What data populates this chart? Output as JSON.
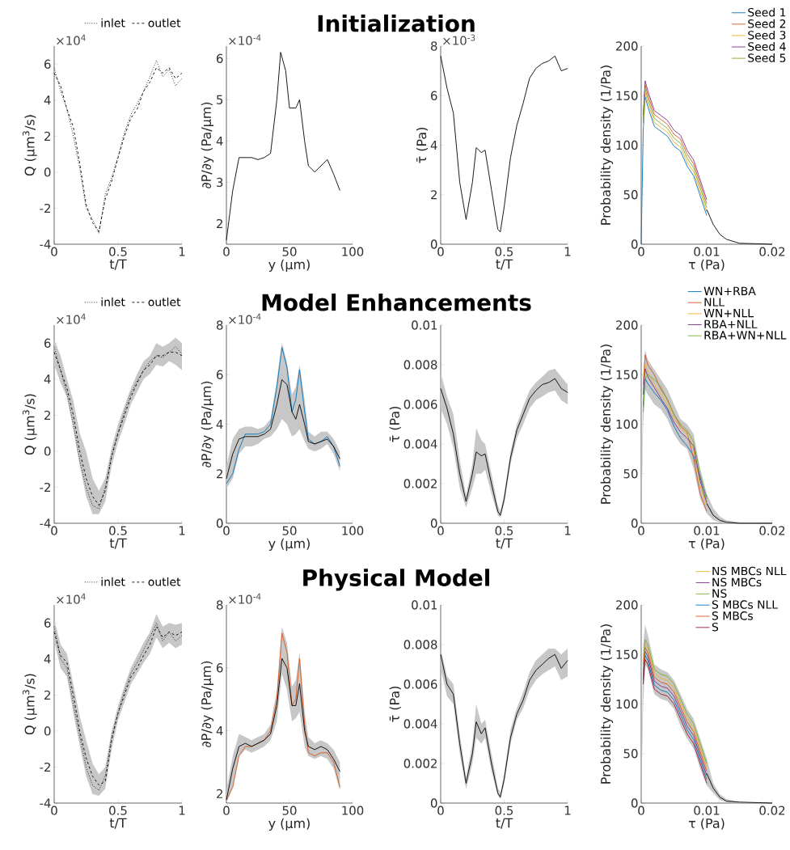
{
  "chart_data": [
    {
      "type": "line",
      "xlabel": "t/T",
      "ylabel": "Q (μm$^{3}$/s)",
      "annotations": [
        "×10$^{4}$"
      ],
      "legend": "top",
      "xlim": [
        0,
        1
      ],
      "ylim": [
        -4,
        7
      ],
      "xticks": [
        0,
        0.5,
        1
      ],
      "yticks": [
        -4,
        -2,
        0,
        2,
        4,
        6
      ],
      "x": [
        0,
        0.05,
        0.1,
        0.15,
        0.2,
        0.25,
        0.3,
        0.35,
        0.4,
        0.45,
        0.5,
        0.55,
        0.6,
        0.65,
        0.7,
        0.75,
        0.8,
        0.85,
        0.9,
        0.95,
        1
      ],
      "series": [
        {
          "name": "inlet",
          "color": "#000000",
          "line_style": "dotted",
          "values": [
            5.8,
            4.5,
            3.5,
            2.0,
            0.2,
            -2.0,
            -2.6,
            -3.4,
            -1.2,
            -0.3,
            0.9,
            2.2,
            3.2,
            3.8,
            4.5,
            5.3,
            6.2,
            5.3,
            5.7,
            4.8,
            5.2
          ]
        },
        {
          "name": "outlet",
          "color": "#000000",
          "line_style": "dashed",
          "values": [
            5.5,
            4.8,
            3.5,
            2.5,
            0.5,
            -1.8,
            -2.8,
            -3.3,
            -1.5,
            -0.5,
            0.8,
            2.0,
            3.0,
            3.5,
            4.5,
            5.0,
            5.8,
            5.5,
            5.8,
            5.2,
            5.5
          ]
        }
      ]
    },
    {
      "type": "line",
      "title": "Initialization",
      "xlabel": "y  (μm)",
      "ylabel": "∂P/∂y (Pa/μm)",
      "annotations": [
        "×10$^{-4}$"
      ],
      "xlim": [
        0,
        100
      ],
      "ylim": [
        1.5,
        6.3
      ],
      "xticks": [
        0,
        50,
        100
      ],
      "yticks": [
        2,
        3,
        4,
        5,
        6
      ],
      "x": [
        0,
        5,
        10,
        15,
        20,
        25,
        30,
        35,
        40,
        43,
        47,
        50,
        55,
        58,
        62,
        65,
        70,
        75,
        80,
        85,
        90
      ],
      "series": [
        {
          "color": "#000000",
          "values": [
            1.6,
            2.8,
            3.6,
            3.6,
            3.6,
            3.55,
            3.6,
            3.7,
            5.0,
            6.15,
            5.7,
            4.8,
            4.8,
            5.0,
            4.0,
            3.4,
            3.25,
            3.4,
            3.55,
            3.2,
            2.8
          ]
        }
      ]
    },
    {
      "type": "line",
      "xlabel": "t/T",
      "ylabel": "τ̄ (Pa)",
      "annotations": [
        "×10$^{-3}$"
      ],
      "xlim": [
        0,
        1
      ],
      "ylim": [
        0,
        8
      ],
      "xticks": [
        0,
        0.5,
        1
      ],
      "yticks": [
        0,
        2,
        4,
        6,
        8
      ],
      "x": [
        0,
        0.05,
        0.1,
        0.15,
        0.2,
        0.25,
        0.28,
        0.32,
        0.35,
        0.4,
        0.45,
        0.47,
        0.5,
        0.55,
        0.6,
        0.65,
        0.7,
        0.75,
        0.8,
        0.85,
        0.9,
        0.95,
        1
      ],
      "series": [
        {
          "color": "#000000",
          "values": [
            7.6,
            6.3,
            5.3,
            2.5,
            1.0,
            2.5,
            3.9,
            3.7,
            3.8,
            2.2,
            0.6,
            0.5,
            1.5,
            3.5,
            4.8,
            5.7,
            6.7,
            7.1,
            7.3,
            7.4,
            7.6,
            7.0,
            7.1
          ]
        }
      ]
    },
    {
      "type": "line",
      "xlabel": "τ (Pa)",
      "ylabel": "Probability density (1/Pa)",
      "legend": "top right",
      "xlim": [
        0,
        0.02
      ],
      "ylim": [
        0,
        200
      ],
      "xticks": [
        0,
        0.01,
        0.02
      ],
      "yticks": [
        0,
        50,
        100,
        150,
        200
      ],
      "x": [
        0,
        0.0003,
        0.0006,
        0.001,
        0.002,
        0.003,
        0.004,
        0.005,
        0.006,
        0.007,
        0.008,
        0.009,
        0.01,
        0.011,
        0.012,
        0.013,
        0.015,
        0.02
      ],
      "series": [
        {
          "name": "Seed 1",
          "color": "#0072bd",
          "values": [
            0,
            114,
            149,
            139,
            119,
            114,
            109,
            99,
            94,
            79,
            69,
            49,
            29,
            null,
            null,
            null,
            null,
            null
          ]
        },
        {
          "name": "Seed 2",
          "color": "#d95319",
          "values": [
            null,
            126,
            161,
            151,
            131,
            126,
            121,
            111,
            106,
            91,
            81,
            61,
            41,
            null,
            null,
            null,
            null,
            null
          ]
        },
        {
          "name": "Seed 3",
          "color": "#edb120",
          "values": [
            null,
            118,
            153,
            143,
            123,
            118,
            113,
            103,
            98,
            83,
            73,
            53,
            33,
            null,
            null,
            null,
            null,
            null
          ]
        },
        {
          "name": "Seed 4",
          "color": "#7e2f8e",
          "values": [
            null,
            130,
            165,
            155,
            135,
            130,
            125,
            115,
            110,
            95,
            85,
            65,
            45,
            null,
            null,
            null,
            null,
            null
          ]
        },
        {
          "name": "Seed 5",
          "color": "#77ac30",
          "values": [
            null,
            122,
            157,
            147,
            127,
            122,
            117,
            107,
            102,
            87,
            77,
            57,
            37,
            null,
            null,
            null,
            null,
            null
          ]
        },
        {
          "color": "#000000",
          "values": [
            null,
            null,
            null,
            null,
            null,
            null,
            null,
            null,
            null,
            null,
            null,
            null,
            35,
            20,
            10,
            5,
            1,
            0
          ]
        }
      ]
    },
    {
      "type": "line",
      "xlabel": "t/T",
      "ylabel": "Q (μm$^{3}$/s)",
      "annotations": [
        "×10$^{4}$"
      ],
      "legend": "top",
      "xlim": [
        0,
        1
      ],
      "ylim": [
        -4,
        7
      ],
      "xticks": [
        0,
        0.5,
        1
      ],
      "yticks": [
        -4,
        -2,
        0,
        2,
        4,
        6
      ],
      "x": [
        0,
        0.05,
        0.1,
        0.15,
        0.2,
        0.25,
        0.3,
        0.35,
        0.4,
        0.45,
        0.5,
        0.55,
        0.6,
        0.65,
        0.7,
        0.75,
        0.8,
        0.85,
        0.9,
        0.95,
        1
      ],
      "series": [
        {
          "name": "inlet",
          "color": "#000000",
          "line_style": "dotted",
          "values": [
            5.8,
            4.5,
            3.2,
            1.5,
            -0.5,
            -2.0,
            -3.0,
            -3.2,
            -2.0,
            -0.2,
            1.0,
            2.2,
            3.2,
            3.9,
            4.5,
            5.0,
            5.3,
            5.2,
            5.5,
            5.8,
            5.4
          ]
        },
        {
          "name": "outlet",
          "color": "#000000",
          "line_style": "dashed",
          "values": [
            5.5,
            4.5,
            3.5,
            2.0,
            0,
            -1.5,
            -2.5,
            -3.0,
            -2.2,
            -0.3,
            1.0,
            2.0,
            3.0,
            3.8,
            4.5,
            4.8,
            5.3,
            5.3,
            5.5,
            5.5,
            5.3
          ],
          "lower": [
            4.8,
            3.8,
            3.0,
            1.2,
            -0.8,
            -2.5,
            -3.5,
            -3.5,
            -2.8,
            -0.8,
            0.5,
            1.5,
            2.6,
            3.3,
            4.0,
            4.3,
            4.8,
            4.7,
            5.0,
            4.8,
            4.5
          ],
          "upper": [
            6.2,
            5.3,
            4.0,
            2.8,
            1.0,
            0.0,
            -1.5,
            -2.2,
            -1.5,
            0.2,
            1.5,
            2.5,
            3.5,
            4.3,
            5.0,
            5.3,
            6.0,
            5.8,
            6.0,
            6.3,
            6.0
          ]
        }
      ]
    },
    {
      "type": "line",
      "title": "Model Enhancements",
      "xlabel": "y  (μm)",
      "ylabel": "∂P/∂y (Pa/μm)",
      "annotations": [
        "×10$^{-4}$"
      ],
      "xlim": [
        0,
        100
      ],
      "ylim": [
        0,
        8
      ],
      "xticks": [
        0,
        50,
        100
      ],
      "yticks": [
        0,
        2,
        4,
        6,
        8
      ],
      "x": [
        0,
        5,
        10,
        15,
        20,
        25,
        30,
        35,
        40,
        44,
        48,
        52,
        55,
        58,
        62,
        65,
        70,
        75,
        80,
        85,
        90
      ],
      "series": [
        {
          "color": "#0072bd",
          "values": [
            1.6,
            2.0,
            3.0,
            3.6,
            3.6,
            3.6,
            3.7,
            4.0,
            5.5,
            7.1,
            6.3,
            4.5,
            5.0,
            6.2,
            4.5,
            3.4,
            3.2,
            3.3,
            3.5,
            3.1,
            2.3
          ]
        },
        {
          "color": "#000000",
          "values": [
            1.8,
            2.8,
            3.4,
            3.5,
            3.5,
            3.5,
            3.6,
            3.8,
            4.8,
            5.8,
            5.6,
            4.5,
            4.2,
            4.8,
            4.0,
            3.3,
            3.2,
            3.3,
            3.4,
            3.1,
            2.6
          ],
          "lower": [
            1.4,
            1.8,
            2.8,
            3.1,
            3.1,
            3.2,
            3.4,
            3.5,
            3.8,
            4.2,
            4.0,
            3.5,
            3.6,
            3.8,
            3.3,
            3.0,
            2.9,
            3.0,
            3.2,
            2.8,
            2.1
          ],
          "upper": [
            2.3,
            3.4,
            3.8,
            3.9,
            3.9,
            3.8,
            3.9,
            4.2,
            5.8,
            7.3,
            6.5,
            5.2,
            5.5,
            6.4,
            5.0,
            3.7,
            3.5,
            3.7,
            3.7,
            3.4,
            2.9
          ]
        }
      ]
    },
    {
      "type": "line",
      "xlabel": "t/T",
      "ylabel": "τ̄ (Pa)",
      "xlim": [
        0,
        1
      ],
      "ylim": [
        0,
        0.01
      ],
      "xticks": [
        0,
        0.5,
        1
      ],
      "yticks": [
        0,
        0.002,
        0.004,
        0.006,
        0.008,
        0.01
      ],
      "x": [
        0,
        0.05,
        0.1,
        0.15,
        0.2,
        0.25,
        0.28,
        0.32,
        0.35,
        0.4,
        0.45,
        0.47,
        0.5,
        0.55,
        0.6,
        0.65,
        0.7,
        0.75,
        0.8,
        0.85,
        0.9,
        0.95,
        1
      ],
      "series": [
        {
          "color": "#000000",
          "values": [
            0.0068,
            0.0058,
            0.0045,
            0.0025,
            0.0011,
            0.0025,
            0.0036,
            0.0034,
            0.0035,
            0.002,
            0.0006,
            0.0004,
            0.0012,
            0.0033,
            0.0047,
            0.0055,
            0.0063,
            0.0067,
            0.007,
            0.0071,
            0.0073,
            0.0068,
            0.0066
          ],
          "lower": [
            0.0058,
            0.005,
            0.0038,
            0.0018,
            0.0008,
            0.0018,
            0.0025,
            0.0025,
            0.0027,
            0.0015,
            0.0004,
            0.0003,
            0.001,
            0.003,
            0.0043,
            0.005,
            0.0058,
            0.0062,
            0.0064,
            0.0066,
            0.0067,
            0.0062,
            0.006
          ],
          "upper": [
            0.0076,
            0.0064,
            0.0055,
            0.0032,
            0.0014,
            0.003,
            0.0048,
            0.0042,
            0.004,
            0.0025,
            0.0009,
            0.0006,
            0.0015,
            0.0036,
            0.005,
            0.0059,
            0.0067,
            0.0071,
            0.0074,
            0.0077,
            0.0078,
            0.0074,
            0.007
          ]
        }
      ]
    },
    {
      "type": "line",
      "xlabel": "τ (Pa)",
      "ylabel": "Probability density (1/Pa)",
      "legend": "top right",
      "xlim": [
        0,
        0.02
      ],
      "ylim": [
        0,
        200
      ],
      "xticks": [
        0,
        0.01,
        0.02
      ],
      "yticks": [
        0,
        50,
        100,
        150,
        200
      ],
      "x": [
        0,
        0.0003,
        0.0006,
        0.001,
        0.002,
        0.003,
        0.004,
        0.005,
        0.006,
        0.007,
        0.008,
        0.009,
        0.01,
        0.011,
        0.012,
        0.013,
        0.015,
        0.02
      ],
      "series": [
        {
          "name": "WN+RBA",
          "color": "#0072bd",
          "values": [
            null,
            118,
            146,
            141,
            132,
            124,
            114,
            98,
            86,
            78,
            68,
            46,
            26,
            null,
            null,
            null,
            null,
            null
          ]
        },
        {
          "name": "NLL",
          "color": "#d95319",
          "values": [
            null,
            140,
            170,
            160,
            150,
            135,
            125,
            110,
            98,
            92,
            65,
            30,
            12,
            null,
            null,
            null,
            null,
            null
          ]
        },
        {
          "name": "WN+NLL",
          "color": "#edb120",
          "values": [
            null,
            135,
            160,
            152,
            140,
            130,
            120,
            106,
            96,
            90,
            75,
            38,
            18,
            null,
            null,
            null,
            null,
            null
          ]
        },
        {
          "name": "RBA+NLL",
          "color": "#7e2f8e",
          "values": [
            null,
            130,
            156,
            148,
            137,
            126,
            116,
            102,
            92,
            86,
            78,
            43,
            21,
            null,
            null,
            null,
            null,
            null
          ]
        },
        {
          "name": "RBA+WN+NLL",
          "color": "#77ac30",
          "values": [
            null,
            112,
            146,
            150,
            145,
            138,
            124,
            110,
            100,
            94,
            82,
            50,
            24,
            null,
            null,
            null,
            null,
            null
          ]
        },
        {
          "color": "#000000",
          "values": [
            null,
            null,
            null,
            null,
            null,
            null,
            null,
            null,
            null,
            null,
            null,
            null,
            20,
            8,
            3,
            1,
            0,
            0
          ],
          "lower": [
            0,
            100,
            135,
            130,
            120,
            115,
            105,
            90,
            80,
            75,
            55,
            25,
            10,
            3,
            1,
            0,
            0,
            0
          ],
          "upper": [
            0,
            150,
            175,
            165,
            155,
            145,
            135,
            120,
            105,
            100,
            90,
            55,
            30,
            15,
            7,
            3,
            1,
            0
          ]
        }
      ]
    },
    {
      "type": "line",
      "xlabel": "t/T",
      "ylabel": "Q (μm$^{3}$/s)",
      "annotations": [
        "×10$^{4}$"
      ],
      "legend": "top",
      "xlim": [
        0,
        1
      ],
      "ylim": [
        -4,
        7
      ],
      "xticks": [
        0,
        0.5,
        1
      ],
      "yticks": [
        -4,
        -2,
        0,
        2,
        4,
        6
      ],
      "x": [
        0,
        0.05,
        0.1,
        0.15,
        0.2,
        0.25,
        0.3,
        0.35,
        0.4,
        0.45,
        0.5,
        0.55,
        0.6,
        0.65,
        0.7,
        0.75,
        0.8,
        0.85,
        0.9,
        0.95,
        1
      ],
      "series": [
        {
          "name": "inlet",
          "color": "#000000",
          "line_style": "dotted",
          "values": [
            5.8,
            4.0,
            3.5,
            1.5,
            -0.3,
            -2.0,
            -3.0,
            -3.3,
            -2.5,
            -0.3,
            1.0,
            2.2,
            3.2,
            3.8,
            4.5,
            5.2,
            6.0,
            5.0,
            5.5,
            5.0,
            5.3
          ]
        },
        {
          "name": "outlet",
          "color": "#000000",
          "line_style": "dashed",
          "values": [
            5.5,
            4.2,
            3.8,
            2.0,
            0,
            -1.5,
            -2.5,
            -3.0,
            -2.8,
            -0.5,
            1.0,
            2.0,
            3.0,
            3.5,
            4.2,
            4.8,
            5.8,
            5.2,
            5.5,
            5.3,
            5.5
          ],
          "lower": [
            5.0,
            3.5,
            3.0,
            1.0,
            -0.8,
            -2.5,
            -3.5,
            -3.6,
            -3.2,
            -1.0,
            0.6,
            1.6,
            2.6,
            3.2,
            3.8,
            4.3,
            5.2,
            4.6,
            4.9,
            4.6,
            4.8
          ],
          "upper": [
            6.2,
            4.8,
            4.3,
            2.6,
            0.8,
            -0.5,
            -1.8,
            -2.4,
            -2.0,
            0,
            1.4,
            2.5,
            3.5,
            4.2,
            4.9,
            5.5,
            6.5,
            5.8,
            6.0,
            5.9,
            6.0
          ]
        }
      ]
    },
    {
      "type": "line",
      "title": "Physical Model",
      "xlabel": "y  (μm)",
      "ylabel": "∂P/∂y (Pa/μm)",
      "annotations": [
        "×10$^{-4}$"
      ],
      "xlim": [
        0,
        100
      ],
      "ylim": [
        1.7,
        8
      ],
      "xticks": [
        0,
        50,
        100
      ],
      "yticks": [
        2,
        4,
        6,
        8
      ],
      "x": [
        0,
        5,
        10,
        15,
        20,
        25,
        30,
        35,
        40,
        44,
        48,
        52,
        55,
        58,
        62,
        65,
        70,
        75,
        80,
        85,
        90
      ],
      "series": [
        {
          "color": "#d95319",
          "values": [
            1.8,
            2.2,
            3.2,
            3.5,
            3.5,
            3.6,
            3.7,
            4.0,
            5.0,
            7.1,
            6.5,
            4.8,
            5.0,
            6.3,
            4.2,
            3.3,
            3.2,
            3.3,
            3.3,
            3.0,
            2.2
          ]
        },
        {
          "color": "#000000",
          "values": [
            1.8,
            2.8,
            3.5,
            3.6,
            3.5,
            3.6,
            3.7,
            3.9,
            4.8,
            6.3,
            6.0,
            4.8,
            4.8,
            5.5,
            4.0,
            3.5,
            3.4,
            3.5,
            3.4,
            3.1,
            2.7
          ],
          "lower": [
            1.7,
            2.2,
            3.2,
            3.4,
            3.3,
            3.4,
            3.5,
            3.7,
            4.3,
            5.8,
            5.3,
            4.3,
            4.4,
            4.6,
            3.5,
            3.2,
            3.1,
            3.2,
            3.1,
            2.8,
            2.1
          ],
          "upper": [
            2.1,
            3.2,
            3.9,
            3.8,
            3.7,
            3.8,
            3.9,
            4.2,
            5.3,
            7.3,
            6.8,
            5.4,
            5.6,
            6.5,
            4.6,
            3.8,
            3.6,
            3.7,
            3.6,
            3.4,
            3.0
          ]
        }
      ]
    },
    {
      "type": "line",
      "xlabel": "t/T",
      "ylabel": "τ̄ (Pa)",
      "xlim": [
        0,
        1
      ],
      "ylim": [
        0,
        0.01
      ],
      "xticks": [
        0,
        0.5,
        1
      ],
      "yticks": [
        0,
        0.002,
        0.004,
        0.006,
        0.008,
        0.01
      ],
      "x": [
        0,
        0.05,
        0.1,
        0.15,
        0.2,
        0.25,
        0.28,
        0.32,
        0.35,
        0.4,
        0.45,
        0.47,
        0.5,
        0.55,
        0.6,
        0.65,
        0.7,
        0.75,
        0.8,
        0.85,
        0.9,
        0.95,
        1
      ],
      "series": [
        {
          "color": "#000000",
          "values": [
            0.0075,
            0.006,
            0.0055,
            0.003,
            0.001,
            0.0025,
            0.0041,
            0.0035,
            0.0038,
            0.002,
            0.0005,
            0.0003,
            0.0012,
            0.0033,
            0.0045,
            0.0052,
            0.0062,
            0.0067,
            0.007,
            0.0073,
            0.0075,
            0.0068,
            0.0072
          ],
          "lower": [
            0.0068,
            0.0054,
            0.005,
            0.0025,
            0.0007,
            0.002,
            0.0033,
            0.003,
            0.0033,
            0.0016,
            0.0004,
            0.0002,
            0.001,
            0.003,
            0.0042,
            0.0048,
            0.0057,
            0.0062,
            0.0065,
            0.0067,
            0.0069,
            0.0062,
            0.0064
          ],
          "upper": [
            0.0078,
            0.0064,
            0.006,
            0.0035,
            0.0013,
            0.003,
            0.005,
            0.004,
            0.0042,
            0.0025,
            0.0008,
            0.0005,
            0.0015,
            0.0037,
            0.0048,
            0.0056,
            0.0066,
            0.0072,
            0.0075,
            0.0078,
            0.0078,
            0.0075,
            0.0078
          ]
        }
      ]
    },
    {
      "type": "line",
      "xlabel": "τ (Pa)",
      "ylabel": "Probability density (1/Pa)",
      "legend": "top right",
      "xlim": [
        0,
        0.02
      ],
      "ylim": [
        0,
        200
      ],
      "xticks": [
        0,
        0.01,
        0.02
      ],
      "yticks": [
        0,
        50,
        100,
        150,
        200
      ],
      "x": [
        0,
        0.0003,
        0.0006,
        0.001,
        0.002,
        0.003,
        0.004,
        0.005,
        0.006,
        0.007,
        0.008,
        0.009,
        0.01,
        0.011,
        0.012,
        0.013,
        0.015,
        0.02
      ],
      "series": [
        {
          "name": "NS MBCs NLL",
          "color": "#edb120",
          "values": [
            null,
            136,
            161,
            156,
            131,
            126,
            124,
            116,
            101,
            86,
            76,
            56,
            36,
            null,
            null,
            null,
            null,
            null
          ]
        },
        {
          "name": "NS MBCs",
          "color": "#7e2f8e",
          "values": [
            null,
            128,
            153,
            148,
            123,
            118,
            116,
            108,
            93,
            78,
            68,
            48,
            28,
            null,
            null,
            null,
            null,
            null
          ]
        },
        {
          "name": "NS",
          "color": "#77ac30",
          "values": [
            null,
            140,
            165,
            160,
            135,
            130,
            128,
            120,
            105,
            90,
            80,
            60,
            40,
            null,
            null,
            null,
            null,
            null
          ]
        },
        {
          "name": "S MBCs NLL",
          "color": "#0072bd",
          "values": [
            null,
            124,
            149,
            144,
            119,
            114,
            112,
            104,
            89,
            74,
            64,
            44,
            24,
            null,
            null,
            null,
            null,
            null
          ]
        },
        {
          "name": "S MBCs",
          "color": "#d95319",
          "values": [
            null,
            132,
            157,
            152,
            127,
            122,
            120,
            112,
            97,
            82,
            72,
            52,
            32,
            null,
            null,
            null,
            null,
            null
          ]
        },
        {
          "name": "S",
          "color": "#a2142f",
          "values": [
            null,
            120,
            145,
            140,
            115,
            110,
            108,
            100,
            85,
            70,
            60,
            40,
            20,
            null,
            null,
            null,
            null,
            null
          ]
        },
        {
          "color": "#000000",
          "values": [
            null,
            null,
            null,
            null,
            null,
            null,
            null,
            null,
            null,
            null,
            null,
            null,
            30,
            15,
            6,
            2,
            1,
            0
          ],
          "lower": [
            0,
            100,
            140,
            135,
            110,
            105,
            103,
            95,
            78,
            65,
            55,
            35,
            18,
            10,
            3,
            1,
            0,
            0
          ],
          "upper": [
            0,
            160,
            180,
            170,
            140,
            135,
            132,
            124,
            110,
            95,
            85,
            65,
            45,
            20,
            9,
            4,
            1,
            0
          ]
        }
      ]
    }
  ]
}
